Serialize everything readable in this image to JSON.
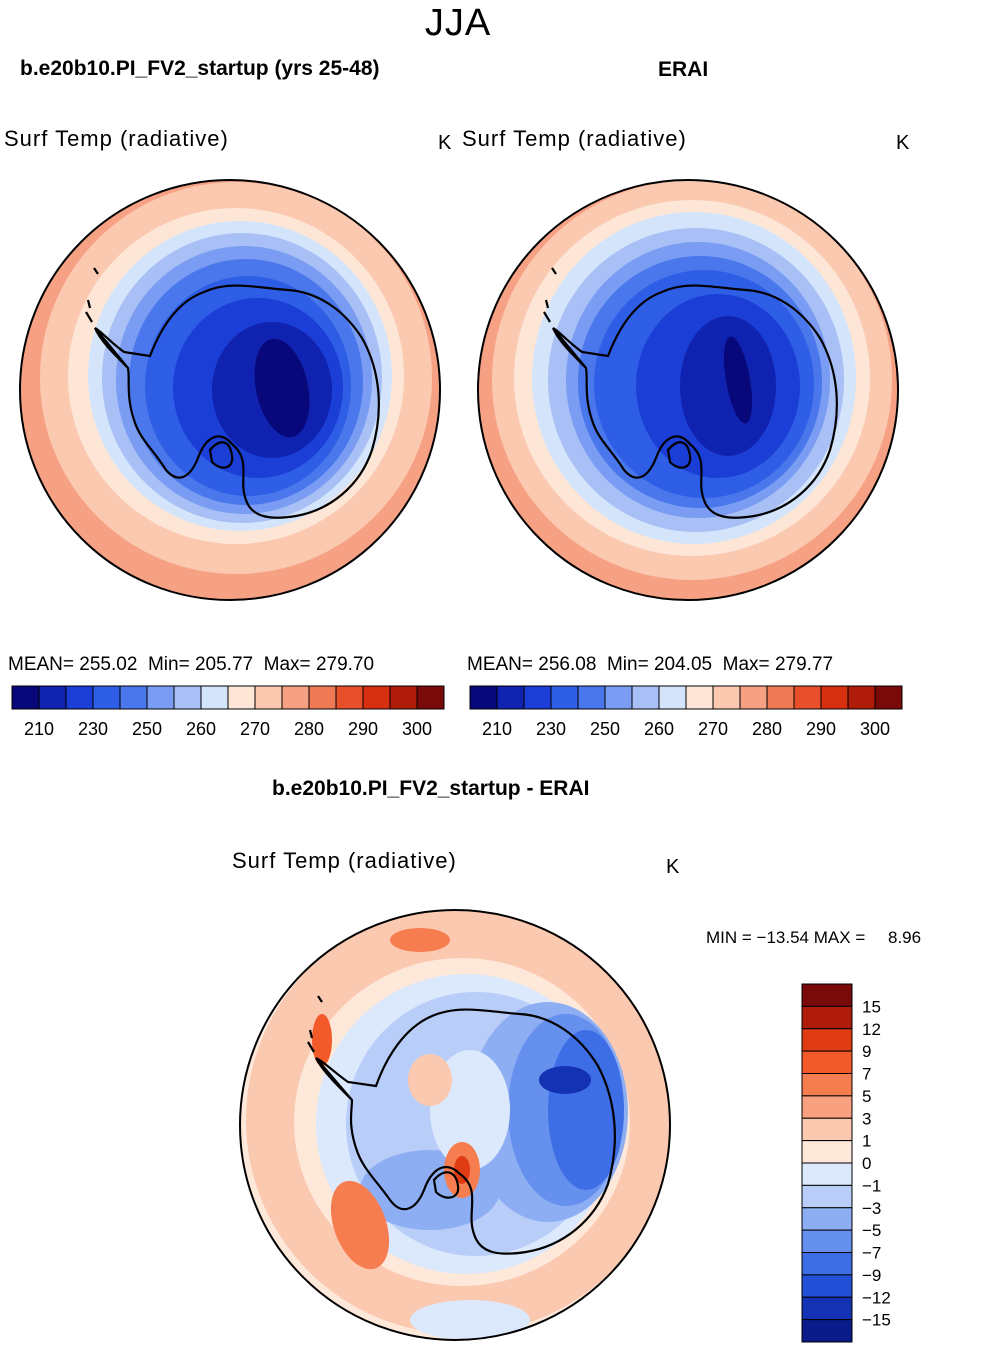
{
  "page": {
    "season": "JJA"
  },
  "panels": [
    {
      "case": "b.e20b10.PI_FV2_startup (yrs 25-48)",
      "variable": "Surf Temp (radiative)",
      "units": "K",
      "stats": {
        "mean_label": "MEAN=",
        "mean": "255.02",
        "min_label": "Min=",
        "min": "205.77",
        "max_label": "Max=",
        "max": "279.70"
      },
      "field_style": "model"
    },
    {
      "case": "ERAI",
      "variable": "Surf Temp (radiative)",
      "units": "K",
      "stats": {
        "mean_label": "MEAN=",
        "mean": "256.08",
        "min_label": "Min=",
        "min": "204.05",
        "max_label": "Max=",
        "max": "279.77"
      },
      "field_style": "obs"
    }
  ],
  "abs_colorbar": {
    "colors": [
      "#08087a",
      "#1022b0",
      "#1a3ed6",
      "#2f5ee6",
      "#4a78ec",
      "#7a9cf2",
      "#a8c0f6",
      "#d4e4fa",
      "#fde6d6",
      "#fbc9b0",
      "#f6a184",
      "#f17a56",
      "#e8502c",
      "#d63010",
      "#b01c0a",
      "#7a0a0a"
    ],
    "labels": [
      "210",
      "230",
      "250",
      "260",
      "270",
      "280",
      "290",
      "300"
    ]
  },
  "diff_panel": {
    "title": "b.e20b10.PI_FV2_startup - ERAI",
    "variable": "Surf Temp (radiative)",
    "units": "K",
    "minmax": {
      "min_label": "MIN =",
      "min": "−13.54",
      "max_label": "MAX =",
      "max": "8.96"
    }
  },
  "diff_colorbar": {
    "colors": [
      "#7a0a0a",
      "#b01c0a",
      "#e03c14",
      "#f25a2a",
      "#f67d50",
      "#f8a080",
      "#fbc8b0",
      "#fde8da",
      "#dce8fb",
      "#b8cdf8",
      "#8eaef4",
      "#6690ee",
      "#3e6ee6",
      "#2250d6",
      "#1432b4",
      "#0a1c8a"
    ],
    "labels": [
      "15",
      "12",
      "9",
      "7",
      "5",
      "3",
      "1",
      "0",
      "−1",
      "−3",
      "−5",
      "−7",
      "−9",
      "−12",
      "−15"
    ]
  }
}
